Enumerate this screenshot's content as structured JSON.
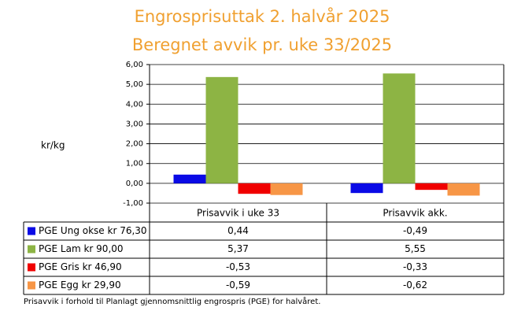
{
  "chart_data": {
    "type": "bar",
    "title": "Engrosprisuttak 2. halvår 2025",
    "subtitle": "Beregnet avvik pr. uke 33/2025",
    "y_label": "kr/kg",
    "footnote": "Prisavvik i forhold til Planlagt gjennomsnittlig engrospris (PGE) for halvåret.",
    "categories": [
      "Prisavvik i uke 33",
      "Prisavvik akk."
    ],
    "series": [
      {
        "name": "PGE Ung okse kr 76,30",
        "color": "#0a0ae6",
        "values": [
          0.44,
          -0.49
        ],
        "value_labels": [
          "0,44",
          "-0,49"
        ]
      },
      {
        "name": "PGE Lam kr 90,00",
        "color": "#8db444",
        "values": [
          5.37,
          5.55
        ],
        "value_labels": [
          "5,37",
          "5,55"
        ]
      },
      {
        "name": "PGE Gris kr 46,90",
        "color": "#f00000",
        "values": [
          -0.53,
          -0.33
        ],
        "value_labels": [
          "-0,53",
          "-0,33"
        ]
      },
      {
        "name": "PGE Egg kr 29,90",
        "color": "#f79646",
        "values": [
          -0.59,
          -0.62
        ],
        "value_labels": [
          "-0,59",
          "-0,62"
        ]
      }
    ],
    "ylim": [
      -1,
      6
    ],
    "yticks": [
      {
        "value": -1,
        "label": "-1,00"
      },
      {
        "value": 0,
        "label": "0,00"
      },
      {
        "value": 1,
        "label": "1,00"
      },
      {
        "value": 2,
        "label": "2,00"
      },
      {
        "value": 3,
        "label": "3,00"
      },
      {
        "value": 4,
        "label": "4,00"
      },
      {
        "value": 5,
        "label": "5,00"
      },
      {
        "value": 6,
        "label": "6,00"
      }
    ],
    "grid": true
  }
}
